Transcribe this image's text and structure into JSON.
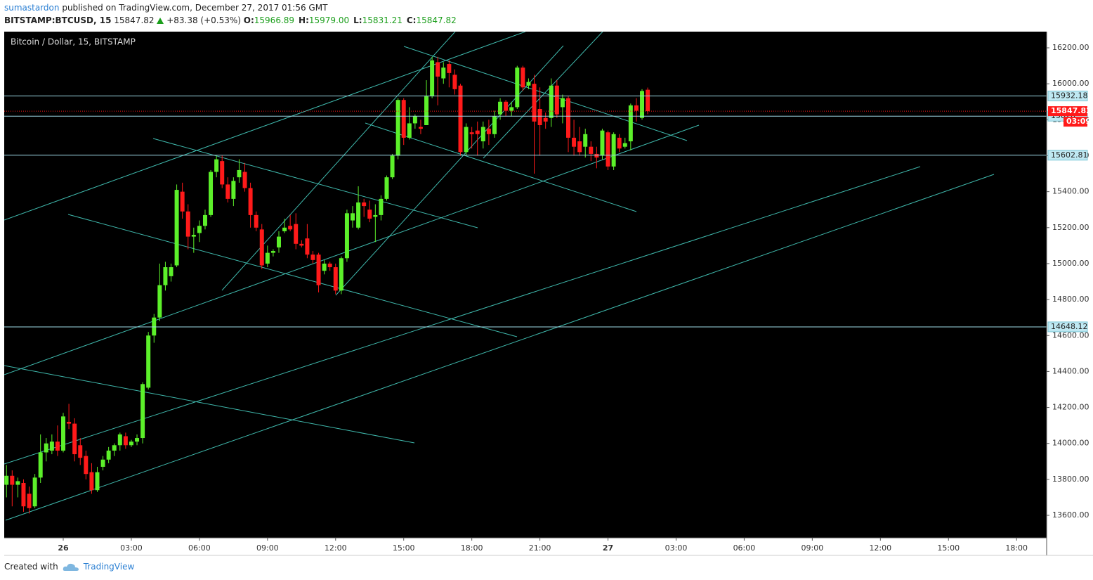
{
  "header": {
    "author": "sumastardon",
    "published": "published on TradingView.com, December 27, 2017 01:56 GMT",
    "symbol": "BITSTAMP:BTCUSD, 15",
    "price": "15847.82",
    "change": "+83.38 (+0.53%)",
    "ohlc": [
      {
        "label": "O:",
        "value": "15966.89"
      },
      {
        "label": "H:",
        "value": "15979.00"
      },
      {
        "label": "L:",
        "value": "15831.21"
      },
      {
        "label": "C:",
        "value": "15847.82"
      }
    ]
  },
  "chart_data": {
    "type": "candlestick",
    "title": "Bitcoin / Dollar, 15, BITSTAMP",
    "up_color": "#5cf02a",
    "down_color": "#ff1a1a",
    "line_color": "#3fb8ac",
    "level_color": "#9fdbe8",
    "open": [
      13770,
      13820,
      13770,
      13780,
      13720,
      13650,
      13810,
      13950,
      13960,
      14010,
      13960,
      14120,
      14110,
      13990,
      13930,
      13840,
      13740,
      13870,
      13910,
      13960,
      13990,
      14040,
      13990,
      14010,
      14030,
      14310,
      14600,
      14700,
      14880,
      14930,
      14990,
      15400,
      15290,
      15150,
      15170,
      15210,
      15270,
      15510,
      15570,
      15440,
      15360,
      15480,
      15510,
      15420,
      15270,
      15190,
      15000,
      15060,
      15090,
      15180,
      15210,
      15220,
      15110,
      15140,
      15050,
      15050,
      14960,
      15000,
      14980,
      14850,
      15030,
      15240,
      15200,
      15340,
      15300,
      15260,
      15270,
      15360,
      15480,
      15600,
      15910,
      15700,
      15780,
      15760,
      15770,
      15930,
      16120,
      16030,
      16110,
      16050,
      15990,
      15620,
      15730,
      15740,
      15680,
      15750,
      15720,
      15830,
      15900,
      15850,
      15870,
      16090,
      15990,
      16000,
      15860,
      15810,
      15810,
      15990,
      15870,
      15920,
      15700,
      15680,
      15650,
      15650,
      15610,
      15600,
      15730,
      15540,
      15700,
      15650,
      15680,
      15880,
      15810,
      15966.89
    ],
    "high": [
      13880,
      13850,
      13810,
      13800,
      13760,
      13830,
      14050,
      14030,
      14050,
      14100,
      14170,
      14220,
      14140,
      14030,
      13960,
      13890,
      13870,
      13930,
      13980,
      14000,
      14060,
      14060,
      14020,
      14050,
      14340,
      14620,
      14720,
      15000,
      15010,
      15000,
      15440,
      15450,
      15330,
      15200,
      15240,
      15300,
      15520,
      15600,
      15600,
      15480,
      15480,
      15580,
      15560,
      15450,
      15290,
      15220,
      15100,
      15080,
      15180,
      15250,
      15270,
      15280,
      15130,
      15220,
      15070,
      15060,
      15020,
      15010,
      15000,
      15040,
      15300,
      15320,
      15430,
      15360,
      15350,
      15330,
      15380,
      15490,
      15610,
      15920,
      15920,
      15870,
      15830,
      15800,
      16020,
      16150,
      16150,
      16120,
      16130,
      16080,
      16000,
      15780,
      15760,
      15790,
      15790,
      15800,
      15850,
      15920,
      15910,
      15900,
      16100,
      16100,
      16030,
      16050,
      15980,
      15840,
      16030,
      16020,
      15940,
      15930,
      15800,
      15760,
      15750,
      15680,
      15650,
      15750,
      15740,
      15730,
      15720,
      15700,
      15890,
      15920,
      15970,
      15979
    ],
    "low": [
      13700,
      13650,
      13700,
      13620,
      13610,
      13640,
      13780,
      13900,
      13940,
      13930,
      13950,
      14080,
      13900,
      13880,
      13800,
      13720,
      13730,
      13850,
      13890,
      13930,
      13960,
      13970,
      13980,
      13990,
      14000,
      14300,
      14560,
      14680,
      14850,
      14900,
      14980,
      15250,
      15080,
      15060,
      15120,
      15190,
      15260,
      15480,
      15420,
      15340,
      15320,
      15450,
      15400,
      15200,
      15180,
      14970,
      14980,
      15040,
      15060,
      15170,
      15180,
      15080,
      15090,
      15030,
      15000,
      14840,
      14940,
      14960,
      14830,
      14830,
      15010,
      15200,
      15190,
      15260,
      15230,
      15120,
      15240,
      15350,
      15470,
      15580,
      15660,
      15690,
      15750,
      15720,
      15770,
      15920,
      15880,
      16000,
      15980,
      15940,
      15600,
      15600,
      15640,
      15600,
      15640,
      15660,
      15700,
      15800,
      15820,
      15820,
      15860,
      15960,
      15970,
      15500,
      15600,
      15750,
      15760,
      15810,
      15780,
      15620,
      15600,
      15600,
      15590,
      15570,
      15530,
      15580,
      15520,
      15520,
      15620,
      15640,
      15630,
      15790,
      15800,
      15831.21
    ],
    "close": [
      13820,
      13770,
      13790,
      13650,
      13640,
      13810,
      13950,
      14000,
      14010,
      13960,
      14150,
      14110,
      13940,
      13920,
      13830,
      13740,
      13840,
      13910,
      13960,
      13990,
      14050,
      13990,
      14010,
      14030,
      14330,
      14600,
      14700,
      14880,
      14980,
      14980,
      15410,
      15290,
      15150,
      15160,
      15210,
      15270,
      15510,
      15580,
      15440,
      15360,
      15460,
      15520,
      15420,
      15270,
      15200,
      14990,
      15060,
      15070,
      15150,
      15200,
      15190,
      15110,
      15100,
      15050,
      15020,
      14880,
      15000,
      14980,
      14850,
      15030,
      15280,
      15280,
      15340,
      15320,
      15250,
      15270,
      15360,
      15480,
      15600,
      15910,
      15700,
      15780,
      15820,
      15750,
      15930,
      16130,
      16040,
      16090,
      16060,
      15970,
      15620,
      15760,
      15720,
      15720,
      15760,
      15720,
      15820,
      15900,
      15850,
      15870,
      16090,
      15980,
      16010,
      15790,
      15770,
      15790,
      15990,
      15830,
      15920,
      15700,
      15650,
      15620,
      15720,
      15610,
      15590,
      15740,
      15540,
      15720,
      15640,
      15670,
      15880,
      15850,
      15960,
      15847.82
    ],
    "levels": [
      15932.18,
      15820,
      15602.81,
      14648.12
    ],
    "countdown": "03:09",
    "xlim": [
      -0.4,
      183.3
    ],
    "ylim": [
      13475,
      16290
    ],
    "xticks": [
      {
        "value": 10,
        "label": "26"
      },
      {
        "value": 22,
        "label": "03:00"
      },
      {
        "value": 34,
        "label": "06:00"
      },
      {
        "value": 46,
        "label": "09:00"
      },
      {
        "value": 58,
        "label": "12:00"
      },
      {
        "value": 70,
        "label": "15:00"
      },
      {
        "value": 82,
        "label": "18:00"
      },
      {
        "value": 94,
        "label": "21:00"
      },
      {
        "value": 106,
        "label": "27"
      },
      {
        "value": 118,
        "label": "03:00"
      },
      {
        "value": 130,
        "label": "06:00"
      },
      {
        "value": 142,
        "label": "09:00"
      },
      {
        "value": 154,
        "label": "12:00"
      },
      {
        "value": 166,
        "label": "15:00"
      },
      {
        "value": 178,
        "label": "18:00"
      }
    ],
    "yticks": [
      {
        "value": 13600,
        "label": "13600.00"
      },
      {
        "value": 13800,
        "label": "13800.00"
      },
      {
        "value": 14000,
        "label": "14000.00"
      },
      {
        "value": 14200,
        "label": "14200.00"
      },
      {
        "value": 14400,
        "label": "14400.00"
      },
      {
        "value": 14600,
        "label": "14600.00"
      },
      {
        "value": 14800,
        "label": "14800.00"
      },
      {
        "value": 15000,
        "label": "15000.00"
      },
      {
        "value": 15200,
        "label": "15200.00"
      },
      {
        "value": 15400,
        "label": "15400.00"
      },
      {
        "value": 15600,
        "label": "15600.00"
      },
      {
        "value": 15800,
        "label": "15800.00"
      },
      {
        "value": 16000,
        "label": "16000.00"
      },
      {
        "value": 16200,
        "label": "16200.00"
      }
    ]
  },
  "footer": {
    "created": "Created with",
    "brand": "TradingView"
  }
}
